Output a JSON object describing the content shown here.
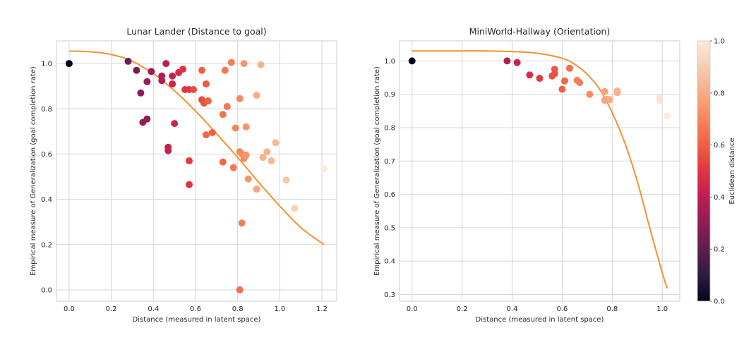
{
  "chart_data": [
    {
      "type": "scatter",
      "title": "Lunar Lander (Distance to goal)",
      "xlabel": "Distance (measured in latent space)",
      "ylabel": "Empirical measure of Generalization (goal completion rate)",
      "xlim": [
        -0.06,
        1.27
      ],
      "ylim": [
        -0.05,
        1.1
      ],
      "xticks": [
        0.0,
        0.2,
        0.4,
        0.6,
        0.8,
        1.0,
        1.2
      ],
      "xtick_labels": [
        "0.0",
        "0.2",
        "0.4",
        "0.6",
        "0.8",
        "1.0",
        "1.2"
      ],
      "yticks": [
        0.0,
        0.2,
        0.4,
        0.6,
        0.8,
        1.0
      ],
      "ytick_labels": [
        "0.0",
        "0.2",
        "0.4",
        "0.6",
        "0.8",
        "1.0"
      ],
      "grid": true,
      "fit_color": "#f4922d",
      "fit": {
        "x": [
          0.0,
          0.1,
          0.2,
          0.3,
          0.4,
          0.5,
          0.6,
          0.7,
          0.8,
          0.9,
          1.0,
          1.1,
          1.21
        ],
        "y": [
          1.055,
          1.052,
          1.04,
          1.01,
          0.955,
          0.88,
          0.79,
          0.69,
          0.585,
          0.475,
          0.37,
          0.275,
          0.2
        ]
      },
      "points": [
        {
          "x": 0.0,
          "y": 1.0,
          "c": 0.0
        },
        {
          "x": 0.28,
          "y": 1.01,
          "c": 0.24
        },
        {
          "x": 0.32,
          "y": 0.97,
          "c": 0.26
        },
        {
          "x": 0.34,
          "y": 0.87,
          "c": 0.3
        },
        {
          "x": 0.35,
          "y": 0.74,
          "c": 0.3
        },
        {
          "x": 0.37,
          "y": 0.755,
          "c": 0.32
        },
        {
          "x": 0.37,
          "y": 0.92,
          "c": 0.32
        },
        {
          "x": 0.39,
          "y": 0.965,
          "c": 0.33
        },
        {
          "x": 0.44,
          "y": 0.945,
          "c": 0.38
        },
        {
          "x": 0.44,
          "y": 0.925,
          "c": 0.38
        },
        {
          "x": 0.46,
          "y": 1.0,
          "c": 0.4
        },
        {
          "x": 0.47,
          "y": 0.63,
          "c": 0.42
        },
        {
          "x": 0.47,
          "y": 0.615,
          "c": 0.42
        },
        {
          "x": 0.49,
          "y": 0.945,
          "c": 0.42
        },
        {
          "x": 0.49,
          "y": 0.91,
          "c": 0.43
        },
        {
          "x": 0.5,
          "y": 0.735,
          "c": 0.44
        },
        {
          "x": 0.52,
          "y": 0.96,
          "c": 0.46
        },
        {
          "x": 0.54,
          "y": 0.975,
          "c": 0.5
        },
        {
          "x": 0.55,
          "y": 0.885,
          "c": 0.5
        },
        {
          "x": 0.57,
          "y": 0.885,
          "c": 0.5
        },
        {
          "x": 0.57,
          "y": 0.57,
          "c": 0.52
        },
        {
          "x": 0.57,
          "y": 0.465,
          "c": 0.5
        },
        {
          "x": 0.59,
          "y": 0.885,
          "c": 0.55
        },
        {
          "x": 0.63,
          "y": 0.97,
          "c": 0.6
        },
        {
          "x": 0.63,
          "y": 0.84,
          "c": 0.55
        },
        {
          "x": 0.64,
          "y": 0.825,
          "c": 0.57
        },
        {
          "x": 0.65,
          "y": 0.91,
          "c": 0.58
        },
        {
          "x": 0.66,
          "y": 0.835,
          "c": 0.6
        },
        {
          "x": 0.65,
          "y": 0.685,
          "c": 0.62
        },
        {
          "x": 0.68,
          "y": 0.695,
          "c": 0.6
        },
        {
          "x": 0.73,
          "y": 0.775,
          "c": 0.65
        },
        {
          "x": 0.73,
          "y": 0.565,
          "c": 0.62
        },
        {
          "x": 0.74,
          "y": 0.97,
          "c": 0.66
        },
        {
          "x": 0.75,
          "y": 0.81,
          "c": 0.66
        },
        {
          "x": 0.77,
          "y": 1.005,
          "c": 0.68
        },
        {
          "x": 0.78,
          "y": 0.54,
          "c": 0.66
        },
        {
          "x": 0.79,
          "y": 0.715,
          "c": 0.7
        },
        {
          "x": 0.81,
          "y": 0.845,
          "c": 0.7
        },
        {
          "x": 0.81,
          "y": 0.61,
          "c": 0.7
        },
        {
          "x": 0.82,
          "y": 0.6,
          "c": 0.72
        },
        {
          "x": 0.82,
          "y": 0.295,
          "c": 0.68
        },
        {
          "x": 0.81,
          "y": 0.0,
          "c": 0.64
        },
        {
          "x": 0.83,
          "y": 1.0,
          "c": 0.74
        },
        {
          "x": 0.83,
          "y": 0.58,
          "c": 0.72
        },
        {
          "x": 0.84,
          "y": 0.595,
          "c": 0.74
        },
        {
          "x": 0.84,
          "y": 0.72,
          "c": 0.74
        },
        {
          "x": 0.85,
          "y": 0.49,
          "c": 0.74
        },
        {
          "x": 0.89,
          "y": 0.86,
          "c": 0.8
        },
        {
          "x": 0.89,
          "y": 0.445,
          "c": 0.78
        },
        {
          "x": 0.91,
          "y": 0.995,
          "c": 0.82
        },
        {
          "x": 0.92,
          "y": 0.585,
          "c": 0.82
        },
        {
          "x": 0.94,
          "y": 0.61,
          "c": 0.82
        },
        {
          "x": 0.96,
          "y": 0.57,
          "c": 0.84
        },
        {
          "x": 0.98,
          "y": 0.65,
          "c": 0.84
        },
        {
          "x": 1.03,
          "y": 0.485,
          "c": 0.88
        },
        {
          "x": 1.07,
          "y": 0.36,
          "c": 0.92
        },
        {
          "x": 1.21,
          "y": 0.535,
          "c": 1.0
        }
      ]
    },
    {
      "type": "scatter",
      "title": "MiniWorld-Hallway (Orientation)",
      "xlabel": "Distance (measured in latent space)",
      "ylabel": "Empirical measure of Generalization (goal completion rate)",
      "xlim": [
        -0.05,
        1.07
      ],
      "ylim": [
        0.28,
        1.06
      ],
      "xticks": [
        0.0,
        0.2,
        0.4,
        0.6,
        0.8,
        1.0
      ],
      "xtick_labels": [
        "0.0",
        "0.2",
        "0.4",
        "0.6",
        "0.8",
        "1.0"
      ],
      "yticks": [
        0.3,
        0.4,
        0.5,
        0.6,
        0.7,
        0.8,
        0.9,
        1.0
      ],
      "ytick_labels": [
        "0.3",
        "0.4",
        "0.5",
        "0.6",
        "0.7",
        "0.8",
        "0.9",
        "1.0"
      ],
      "grid": true,
      "fit_color": "#f4922d",
      "fit": {
        "x": [
          0.0,
          0.1,
          0.2,
          0.3,
          0.4,
          0.5,
          0.6,
          0.65,
          0.7,
          0.75,
          0.8,
          0.85,
          0.9,
          0.95,
          1.0,
          1.02
        ],
        "y": [
          1.03,
          1.03,
          1.03,
          1.03,
          1.028,
          1.023,
          1.008,
          0.99,
          0.96,
          0.915,
          0.845,
          0.755,
          0.64,
          0.5,
          0.365,
          0.318
        ]
      },
      "points": [
        {
          "x": 0.0,
          "y": 1.0,
          "c": 0.0
        },
        {
          "x": 0.38,
          "y": 1.0,
          "c": 0.38
        },
        {
          "x": 0.42,
          "y": 0.995,
          "c": 0.42
        },
        {
          "x": 0.47,
          "y": 0.958,
          "c": 0.48
        },
        {
          "x": 0.51,
          "y": 0.948,
          "c": 0.52
        },
        {
          "x": 0.56,
          "y": 0.955,
          "c": 0.56
        },
        {
          "x": 0.57,
          "y": 0.975,
          "c": 0.58
        },
        {
          "x": 0.57,
          "y": 0.962,
          "c": 0.57
        },
        {
          "x": 0.6,
          "y": 0.915,
          "c": 0.6
        },
        {
          "x": 0.61,
          "y": 0.94,
          "c": 0.62
        },
        {
          "x": 0.63,
          "y": 0.978,
          "c": 0.64
        },
        {
          "x": 0.66,
          "y": 0.942,
          "c": 0.68
        },
        {
          "x": 0.67,
          "y": 0.935,
          "c": 0.68
        },
        {
          "x": 0.71,
          "y": 0.9,
          "c": 0.72
        },
        {
          "x": 0.77,
          "y": 0.908,
          "c": 0.78
        },
        {
          "x": 0.77,
          "y": 0.882,
          "c": 0.78
        },
        {
          "x": 0.78,
          "y": 0.885,
          "c": 0.78
        },
        {
          "x": 0.79,
          "y": 0.884,
          "c": 0.8
        },
        {
          "x": 0.82,
          "y": 0.91,
          "c": 0.82
        },
        {
          "x": 0.82,
          "y": 0.905,
          "c": 0.82
        },
        {
          "x": 0.99,
          "y": 0.882,
          "c": 0.97
        },
        {
          "x": 0.99,
          "y": 0.888,
          "c": 0.97
        },
        {
          "x": 1.02,
          "y": 0.835,
          "c": 1.0
        }
      ]
    }
  ],
  "colorbar": {
    "label": "Euclidean distance",
    "ticks": [
      0.0,
      0.2,
      0.4,
      0.6,
      0.8,
      1.0
    ],
    "tick_labels": [
      "0.0",
      "0.2",
      "0.4",
      "0.6",
      "0.8",
      "1.0"
    ],
    "colormap": "rocket",
    "stops": [
      "#03051a",
      "#2f1c3f",
      "#5d1e4e",
      "#8d1d56",
      "#bd1e50",
      "#e13342",
      "#f06043",
      "#f5875b",
      "#f6ac84",
      "#f7ccb2",
      "#faebdd"
    ]
  }
}
